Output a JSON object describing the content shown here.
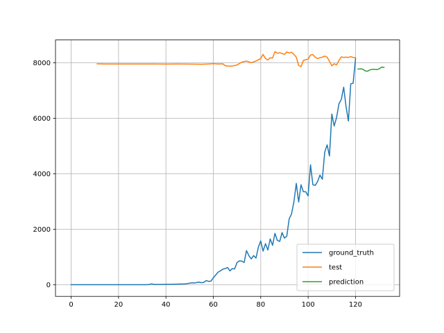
{
  "chart_data": {
    "type": "line",
    "title": "",
    "xlabel": "",
    "ylabel": "",
    "xlim": [
      -6.6,
      138.6
    ],
    "ylim": [
      -420,
      8820
    ],
    "xticks": [
      0,
      20,
      40,
      60,
      80,
      100,
      120
    ],
    "yticks": [
      0,
      2000,
      4000,
      6000,
      8000
    ],
    "grid": true,
    "legend_position": "lower-right",
    "series": [
      {
        "name": "ground_truth",
        "color": "#1f77b4",
        "x": [
          0,
          4,
          8,
          12,
          16,
          20,
          24,
          28,
          32,
          33,
          34,
          35,
          36,
          38,
          40,
          42,
          44,
          46,
          48,
          50,
          51,
          52,
          53,
          54,
          55,
          56,
          57,
          58,
          59,
          60,
          61,
          62,
          63,
          64,
          65,
          66,
          67,
          68,
          69,
          70,
          71,
          72,
          73,
          74,
          75,
          76,
          77,
          78,
          79,
          80,
          81,
          82,
          83,
          84,
          85,
          86,
          87,
          88,
          89,
          90,
          91,
          92,
          93,
          94,
          95,
          96,
          97,
          98,
          99,
          100,
          101,
          102,
          103,
          104,
          105,
          106,
          107,
          108,
          109,
          110,
          111,
          112,
          113,
          114,
          115,
          116,
          117,
          118,
          119,
          120
        ],
        "y": [
          0,
          0,
          0,
          0,
          0,
          0,
          0,
          0,
          0,
          10,
          30,
          10,
          10,
          10,
          15,
          15,
          20,
          25,
          30,
          55,
          70,
          60,
          80,
          95,
          70,
          85,
          150,
          120,
          130,
          250,
          350,
          450,
          500,
          560,
          580,
          620,
          500,
          580,
          570,
          800,
          860,
          850,
          800,
          1230,
          1050,
          930,
          1050,
          960,
          1350,
          1580,
          1210,
          1480,
          1250,
          1650,
          1420,
          1850,
          1600,
          1560,
          1880,
          1680,
          1750,
          2370,
          2550,
          2980,
          3650,
          2980,
          3600,
          3350,
          3350,
          3200,
          4320,
          3600,
          3580,
          3720,
          3950,
          3800,
          4780,
          5040,
          4640,
          6150,
          5720,
          6020,
          6520,
          6680,
          7120,
          6420,
          5900,
          7240,
          7260,
          8150
        ]
      },
      {
        "name": "test",
        "color": "#ff7f0e",
        "x": [
          11,
          15,
          20,
          25,
          30,
          35,
          40,
          45,
          50,
          55,
          58,
          60,
          62,
          64,
          65,
          66,
          68,
          70,
          72,
          74,
          76,
          78,
          80,
          81,
          82,
          83,
          84,
          85,
          86,
          87,
          88,
          89,
          90,
          91,
          92,
          93,
          94,
          95,
          96,
          97,
          98,
          99,
          100,
          101,
          102,
          103,
          104,
          105,
          106,
          107,
          108,
          109,
          110,
          111,
          112,
          113,
          114,
          115,
          116,
          117,
          118,
          119,
          120
        ],
        "y": [
          7960,
          7955,
          7955,
          7955,
          7955,
          7955,
          7950,
          7955,
          7950,
          7945,
          7955,
          7965,
          7955,
          7960,
          7895,
          7880,
          7880,
          7920,
          8020,
          8060,
          8000,
          8060,
          8150,
          8300,
          8150,
          8100,
          8180,
          8170,
          8400,
          8340,
          8360,
          8330,
          8300,
          8390,
          8350,
          8380,
          8300,
          8200,
          7900,
          7860,
          8080,
          8110,
          8130,
          8280,
          8290,
          8200,
          8150,
          8180,
          8200,
          8240,
          8200,
          8050,
          7890,
          7960,
          7920,
          8080,
          8210,
          8190,
          8200,
          8190,
          8220,
          8190,
          8180
        ]
      },
      {
        "name": "prediction",
        "color": "#2ca02c",
        "x": [
          121,
          122,
          123,
          124,
          125,
          126,
          127,
          128,
          129,
          130,
          131,
          132
        ],
        "y": [
          7770,
          7780,
          7770,
          7710,
          7690,
          7740,
          7760,
          7760,
          7750,
          7780,
          7840,
          7830
        ]
      }
    ]
  }
}
